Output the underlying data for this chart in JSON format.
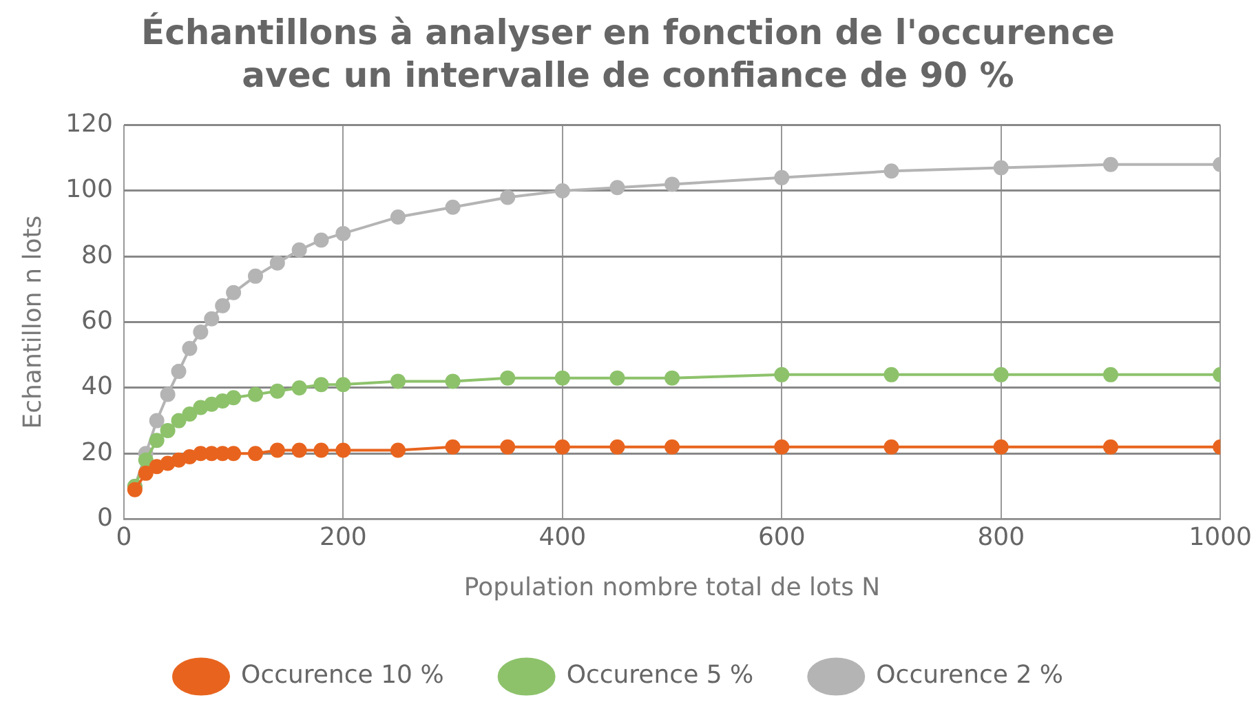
{
  "chart_data": {
    "type": "line",
    "title": "Échantillons à analyser en fonction de l'occurence\navec un intervalle de confiance de 90 %",
    "xlabel": "Population nombre total de lots N",
    "ylabel": "Echantillon n lots",
    "x": [
      10,
      20,
      30,
      40,
      50,
      60,
      70,
      80,
      90,
      100,
      120,
      140,
      160,
      180,
      200,
      250,
      300,
      350,
      400,
      450,
      500,
      600,
      700,
      800,
      900,
      1000
    ],
    "series": [
      {
        "name": "Occurence 10 %",
        "color": "#e8641e",
        "values": [
          9,
          14,
          16,
          17,
          18,
          19,
          20,
          20,
          20,
          20,
          20,
          21,
          21,
          21,
          21,
          21,
          22,
          22,
          22,
          22,
          22,
          22,
          22,
          22,
          22,
          22
        ]
      },
      {
        "name": "Occurence 5 %",
        "color": "#8dc26b",
        "values": [
          10,
          18,
          24,
          27,
          30,
          32,
          34,
          35,
          36,
          37,
          38,
          39,
          40,
          41,
          41,
          42,
          42,
          43,
          43,
          43,
          43,
          44,
          44,
          44,
          44,
          44
        ]
      },
      {
        "name": "Occurence 2 %",
        "color": "#b4b4b4",
        "values": [
          10,
          20,
          30,
          38,
          45,
          52,
          57,
          61,
          65,
          69,
          74,
          78,
          82,
          85,
          87,
          92,
          95,
          98,
          100,
          101,
          102,
          104,
          106,
          107,
          108,
          108
        ]
      }
    ],
    "xlim": [
      0,
      1000
    ],
    "xticks": [
      0,
      200,
      400,
      600,
      800,
      1000
    ],
    "ylim": [
      0,
      120
    ],
    "yticks": [
      0,
      20,
      40,
      60,
      80,
      100,
      120
    ],
    "grid": true,
    "legend": "bottom",
    "marker": "circle",
    "line_style": "solid"
  }
}
